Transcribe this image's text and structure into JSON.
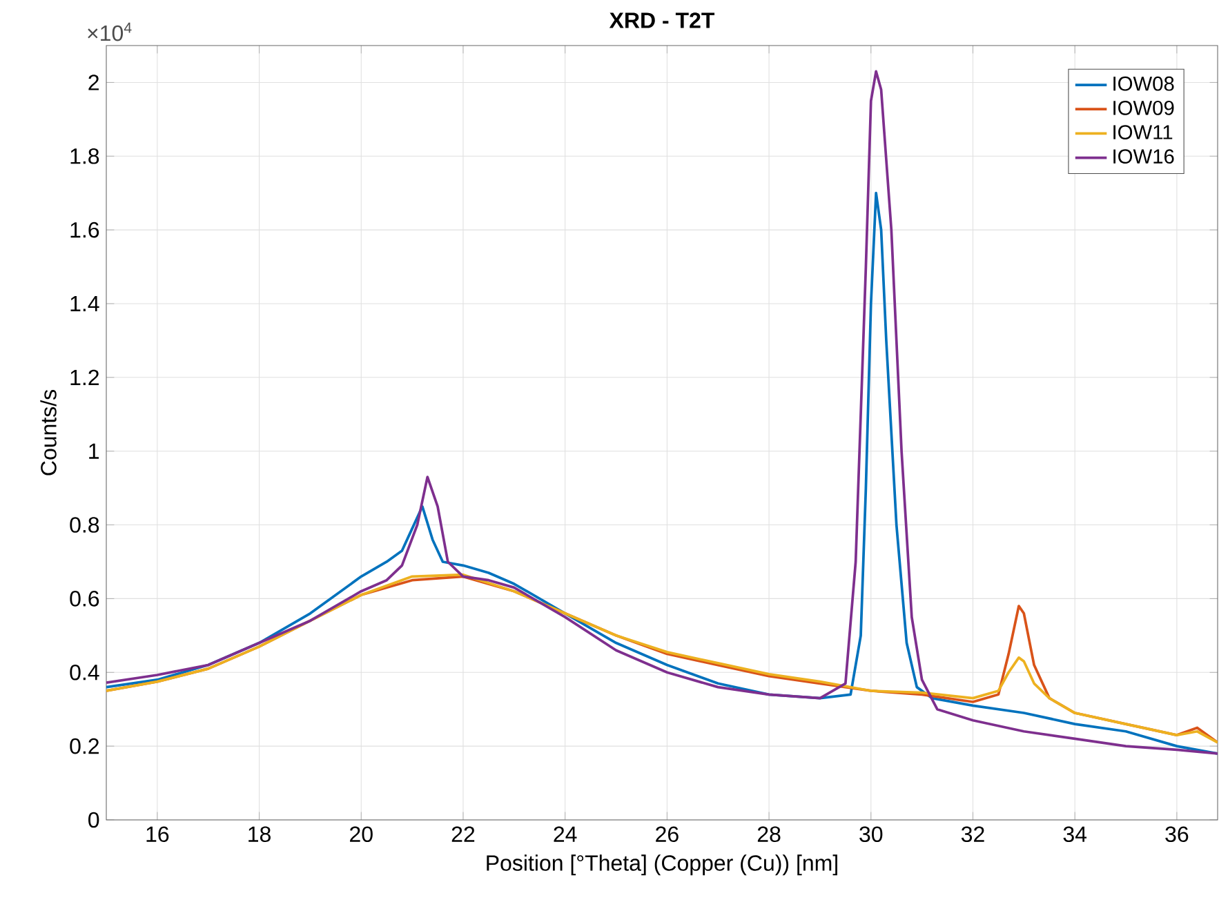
{
  "chart_data": {
    "type": "line",
    "title": "XRD - T2T",
    "xlabel": "Position [°Theta] (Copper (Cu)) [nm]",
    "ylabel": "Counts/s",
    "annotations": [
      "×10$^{4}$"
    ],
    "xlim": [
      15,
      36.8
    ],
    "ylim": [
      0,
      2.1
    ],
    "xticks": [
      16,
      18,
      20,
      22,
      24,
      26,
      28,
      30,
      32,
      34,
      36
    ],
    "yticks": [
      0,
      0.2,
      0.4,
      0.6,
      0.8,
      1,
      1.2,
      1.4,
      1.6,
      1.8,
      2
    ],
    "grid": true,
    "legend": "top right",
    "line_style": "solid",
    "series": [
      {
        "name": "IOW08",
        "color": "#0072bd",
        "x": [
          15,
          16,
          17,
          18,
          19,
          20,
          20.5,
          20.8,
          21.0,
          21.2,
          21.4,
          21.6,
          22,
          22.5,
          23,
          24,
          25,
          26,
          27,
          28,
          29,
          29.6,
          29.8,
          29.9,
          30,
          30.1,
          30.2,
          30.3,
          30.5,
          30.7,
          30.9,
          31.2,
          32,
          33,
          34,
          35,
          36,
          36.8
        ],
        "values": [
          0.36,
          0.38,
          0.42,
          0.48,
          0.56,
          0.66,
          0.7,
          0.73,
          0.79,
          0.85,
          0.76,
          0.7,
          0.69,
          0.67,
          0.64,
          0.56,
          0.48,
          0.42,
          0.37,
          0.34,
          0.33,
          0.34,
          0.5,
          0.9,
          1.4,
          1.7,
          1.6,
          1.3,
          0.8,
          0.48,
          0.36,
          0.33,
          0.31,
          0.29,
          0.26,
          0.24,
          0.2,
          0.18
        ]
      },
      {
        "name": "IOW09",
        "color": "#d95319",
        "x": [
          15,
          16,
          17,
          18,
          19,
          20,
          21,
          22,
          23,
          24,
          25,
          26,
          27,
          28,
          29,
          30,
          31,
          32,
          32.5,
          32.7,
          32.9,
          33.0,
          33.2,
          33.5,
          34,
          35,
          36,
          36.4,
          36.8
        ],
        "values": [
          0.35,
          0.375,
          0.41,
          0.47,
          0.54,
          0.61,
          0.65,
          0.66,
          0.62,
          0.56,
          0.5,
          0.45,
          0.42,
          0.39,
          0.37,
          0.35,
          0.34,
          0.32,
          0.34,
          0.45,
          0.58,
          0.56,
          0.42,
          0.33,
          0.29,
          0.26,
          0.23,
          0.25,
          0.21
        ]
      },
      {
        "name": "IOW11",
        "color": "#edb120",
        "x": [
          15,
          16,
          17,
          18,
          19,
          20,
          21,
          22,
          23,
          24,
          25,
          26,
          27,
          28,
          29,
          30,
          31,
          32,
          32.5,
          32.7,
          32.9,
          33.0,
          33.2,
          33.5,
          34,
          35,
          36,
          36.4,
          36.8
        ],
        "values": [
          0.35,
          0.375,
          0.41,
          0.47,
          0.54,
          0.61,
          0.66,
          0.665,
          0.62,
          0.56,
          0.5,
          0.455,
          0.425,
          0.395,
          0.375,
          0.35,
          0.345,
          0.33,
          0.35,
          0.4,
          0.44,
          0.43,
          0.37,
          0.33,
          0.29,
          0.26,
          0.23,
          0.24,
          0.21
        ]
      },
      {
        "name": "IOW16",
        "color": "#7e2f8e",
        "x": [
          15,
          16,
          17,
          18,
          19,
          20,
          20.5,
          20.8,
          21.1,
          21.3,
          21.5,
          21.7,
          22,
          22.5,
          23,
          24,
          25,
          26,
          27,
          28,
          29,
          29.5,
          29.7,
          29.9,
          30.0,
          30.1,
          30.2,
          30.4,
          30.6,
          30.8,
          31.0,
          31.3,
          32,
          33,
          34,
          35,
          36,
          36.8
        ],
        "values": [
          0.372,
          0.393,
          0.42,
          0.48,
          0.54,
          0.62,
          0.65,
          0.69,
          0.8,
          0.93,
          0.85,
          0.7,
          0.66,
          0.65,
          0.63,
          0.55,
          0.46,
          0.4,
          0.36,
          0.34,
          0.33,
          0.37,
          0.7,
          1.5,
          1.95,
          2.03,
          1.98,
          1.6,
          1.0,
          0.55,
          0.38,
          0.3,
          0.27,
          0.24,
          0.22,
          0.2,
          0.19,
          0.18
        ]
      }
    ]
  }
}
